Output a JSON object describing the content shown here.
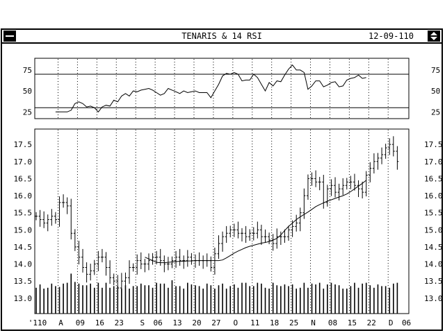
{
  "window": {
    "title": "TENARIS & 14 RSI",
    "date": "12-09-110"
  },
  "chart_data": [
    {
      "type": "line",
      "name": "rsi-panel",
      "ylim": [
        17,
        89
      ],
      "y_ticks": [
        "75",
        "50",
        "25"
      ],
      "y_tick_values": [
        75,
        50,
        25
      ],
      "reference_lines": [
        70,
        30
      ],
      "start_index": 5,
      "values": [
        25,
        25,
        25,
        25,
        27,
        35,
        37,
        35,
        31,
        32,
        30,
        25,
        31,
        33,
        32,
        39,
        37,
        44,
        47,
        44,
        50,
        49,
        51,
        52,
        53,
        51,
        48,
        45,
        47,
        53,
        51,
        49,
        47,
        50,
        48,
        49,
        50,
        48,
        48,
        48,
        42,
        50,
        58,
        68,
        71,
        70,
        72,
        70,
        62,
        63,
        63,
        70,
        66,
        58,
        50,
        60,
        56,
        62,
        61,
        69,
        76,
        81,
        75,
        75,
        72,
        52,
        56,
        62,
        62,
        55,
        57,
        60,
        61,
        55,
        56,
        63,
        65,
        66,
        69,
        65,
        66
      ]
    },
    {
      "type": "ohlc",
      "name": "price-panel",
      "ylim": [
        12.55,
        17.95
      ],
      "y_ticks": [
        "17.5",
        "17.0",
        "16.5",
        "16.0",
        "15.5",
        "15.0",
        "14.5",
        "14.0",
        "13.5",
        "13.0"
      ],
      "y_tick_values": [
        17.5,
        17.0,
        16.5,
        16.0,
        15.5,
        15.0,
        14.5,
        14.0,
        13.5,
        13.0
      ],
      "x_labels": [
        "'110",
        "A",
        "09",
        "16",
        "23",
        "S",
        "06",
        "13",
        "20",
        "27",
        "O",
        "11",
        "18",
        "25",
        "N",
        "08",
        "15",
        "22",
        "D",
        "06"
      ],
      "x_label_index": [
        0,
        6,
        11,
        16,
        21,
        27,
        31,
        36,
        41,
        46,
        51,
        56,
        61,
        66,
        71,
        76,
        81,
        86,
        91,
        95
      ],
      "gridline_index": [
        6,
        11,
        16,
        21,
        26,
        31,
        36,
        41,
        46,
        51,
        56,
        61,
        66,
        71,
        76,
        81,
        86,
        91
      ],
      "close": [
        15.4,
        15.3,
        15.2,
        15.3,
        15.4,
        15.3,
        15.8,
        15.8,
        15.7,
        14.9,
        14.5,
        14.2,
        13.9,
        13.7,
        13.8,
        14.0,
        14.2,
        14.2,
        13.9,
        13.6,
        13.5,
        13.3,
        13.5,
        13.6,
        13.9,
        13.9,
        14.1,
        14.0,
        14.0,
        14.1,
        14.2,
        14.2,
        14.1,
        14.0,
        14.0,
        14.1,
        14.2,
        14.1,
        14.1,
        14.2,
        14.1,
        14.1,
        14.1,
        14.1,
        14.1,
        13.9,
        14.3,
        14.6,
        14.8,
        14.9,
        15.0,
        15.0,
        14.9,
        14.9,
        14.8,
        14.9,
        14.9,
        15.0,
        14.8,
        14.8,
        14.7,
        14.6,
        14.8,
        14.8,
        14.8,
        15.0,
        15.1,
        15.2,
        15.5,
        16.0,
        16.5,
        16.5,
        16.4,
        16.4,
        15.8,
        16.2,
        16.3,
        16.1,
        16.2,
        16.3,
        16.4,
        16.4,
        16.3,
        16.2,
        16.1,
        16.6,
        16.8,
        17.0,
        17.1,
        17.2,
        17.4,
        17.5,
        17.3,
        17.0
      ],
      "series": [
        {
          "name": "moving-average",
          "start_index": 28,
          "values": [
            14.2,
            14.15,
            14.1,
            14.05,
            14.04,
            14.04,
            14.05,
            14.06,
            14.07,
            14.08,
            14.08,
            14.09,
            14.09,
            14.1,
            14.1,
            14.1,
            14.1,
            14.1,
            14.1,
            14.1,
            14.12,
            14.18,
            14.25,
            14.32,
            14.38,
            14.43,
            14.48,
            14.52,
            14.55,
            14.58,
            14.61,
            14.63,
            14.66,
            14.7,
            14.75,
            14.85,
            14.98,
            15.1,
            15.2,
            15.3,
            15.38,
            15.45,
            15.52,
            15.6,
            15.68,
            15.74,
            15.79,
            15.84,
            15.88,
            15.92,
            15.96,
            16.0,
            16.05,
            16.12,
            16.2,
            16.28,
            16.36,
            16.45
          ]
        }
      ],
      "volume_heights": [
        0.31,
        0.35,
        0.3,
        0.31,
        0.36,
        0.33,
        0.32,
        0.36,
        0.37,
        0.48,
        0.38,
        0.36,
        0.34,
        0.34,
        0.36,
        0.31,
        0.37,
        0.31,
        0.37,
        0.31,
        0.33,
        0.33,
        0.3,
        0.34,
        0.3,
        0.33,
        0.33,
        0.36,
        0.34,
        0.34,
        0.31,
        0.37,
        0.36,
        0.36,
        0.31,
        0.4,
        0.33,
        0.33,
        0.3,
        0.37,
        0.35,
        0.34,
        0.33,
        0.3,
        0.36,
        0.34,
        0.3,
        0.34,
        0.36,
        0.3,
        0.33,
        0.35,
        0.31,
        0.37,
        0.37,
        0.33,
        0.33,
        0.37,
        0.36,
        0.31,
        0.3,
        0.37,
        0.34,
        0.33,
        0.35,
        0.33,
        0.35,
        0.3,
        0.31,
        0.37,
        0.31,
        0.36,
        0.35,
        0.37,
        0.3,
        0.35,
        0.37,
        0.35,
        0.34,
        0.3,
        0.3,
        0.33,
        0.37,
        0.31,
        0.36,
        0.37,
        0.34,
        0.31,
        0.35,
        0.33,
        0.33,
        0.31,
        0.36,
        0.37
      ]
    }
  ]
}
